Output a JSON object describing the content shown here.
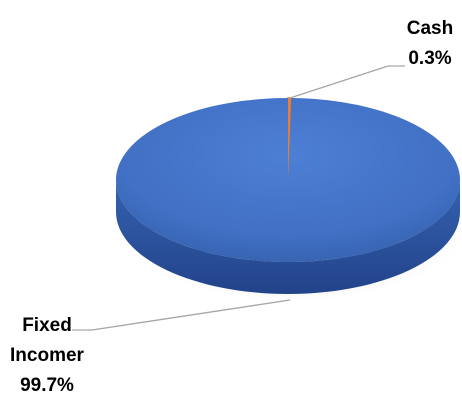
{
  "chart_data": {
    "type": "pie",
    "style": "3d",
    "legend": "none",
    "slices": [
      {
        "label": "Fixed Incomer",
        "label_lines": [
          "Fixed",
          "Incomer"
        ],
        "value": 99.7,
        "value_label": "99.7%",
        "color": "#4472C4"
      },
      {
        "label": "Cash",
        "label_lines": [
          "Cash"
        ],
        "value": 0.3,
        "value_label": "0.3%",
        "color": "#ED7D31"
      }
    ]
  }
}
